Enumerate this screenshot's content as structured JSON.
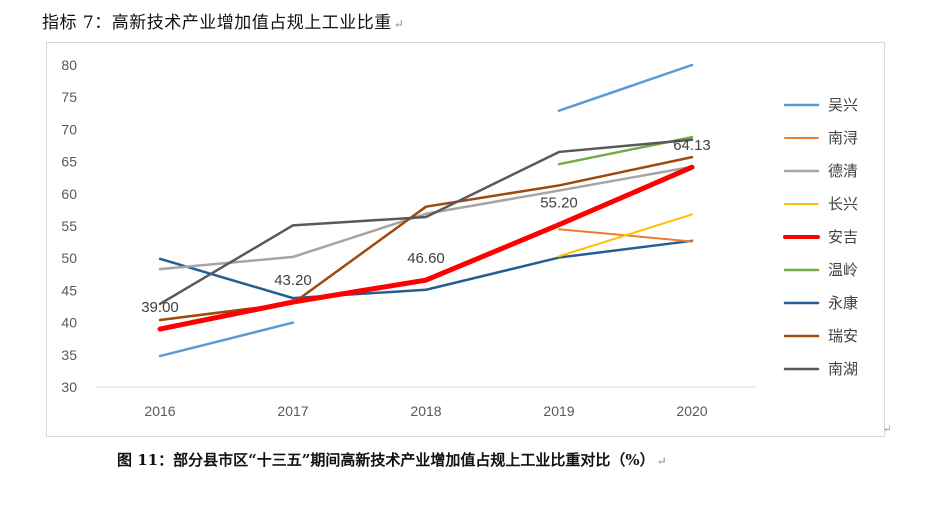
{
  "heading": {
    "text": "指标 7：高新技术产业增加值占规上工业比重",
    "mark": "↵"
  },
  "caption": {
    "text": "图 11：部分县市区“十三五”期间高新技术产业增加值占规上工业比重对比（%）",
    "mark": "↵"
  },
  "corner_mark": "↵",
  "chart_data": {
    "type": "line",
    "categories": [
      "2016",
      "2017",
      "2018",
      "2019",
      "2020"
    ],
    "ylim": [
      30,
      80
    ],
    "yticks": [
      30,
      35,
      40,
      45,
      50,
      55,
      60,
      65,
      70,
      75,
      80
    ],
    "grid": false,
    "legend_position": "right",
    "series": [
      {
        "name": "吴兴",
        "color": "#5B9BD5",
        "width": 2.5,
        "values": [
          34.8,
          40.0,
          null,
          72.9,
          80.0
        ]
      },
      {
        "name": "南浔",
        "color": "#ED7D31",
        "width": 2,
        "values": [
          null,
          null,
          null,
          54.5,
          52.6
        ]
      },
      {
        "name": "德清",
        "color": "#A5A5A5",
        "width": 2.5,
        "values": [
          48.3,
          50.2,
          56.9,
          60.5,
          64.2
        ]
      },
      {
        "name": "长兴",
        "color": "#FFC000",
        "width": 2,
        "values": [
          null,
          null,
          null,
          50.3,
          56.8
        ]
      },
      {
        "name": "安吉",
        "color": "#FF0000",
        "width": 5,
        "values": [
          39.0,
          43.2,
          46.6,
          55.2,
          64.13
        ],
        "labels": [
          "39.00",
          "43.20",
          "46.60",
          "55.20",
          "64.13"
        ]
      },
      {
        "name": "温岭",
        "color": "#70AD47",
        "width": 2.5,
        "values": [
          null,
          null,
          null,
          64.6,
          68.8
        ]
      },
      {
        "name": "永康",
        "color": "#255E91",
        "width": 2.5,
        "values": [
          49.9,
          43.8,
          45.1,
          50.1,
          52.7
        ]
      },
      {
        "name": "瑞安",
        "color": "#9E480E",
        "width": 2.5,
        "values": [
          40.4,
          43.0,
          58.0,
          61.3,
          65.7
        ]
      },
      {
        "name": "南湖",
        "color": "#595959",
        "width": 2.5,
        "values": [
          42.9,
          55.1,
          56.4,
          66.5,
          68.4
        ]
      }
    ]
  }
}
